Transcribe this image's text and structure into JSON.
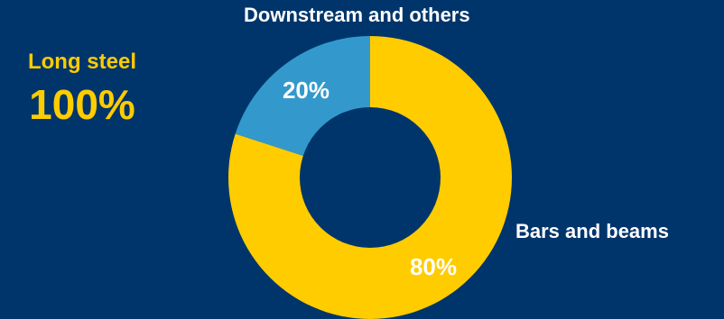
{
  "side_panel": {
    "title": "Long steel",
    "value": "100%"
  },
  "colors": {
    "background": "#00356b",
    "bars_and_beams": "#ffcc00",
    "downstream": "#3399cc",
    "text_white": "#ffffff",
    "text_yellow": "#ffcc00"
  },
  "chart_data": {
    "type": "pie",
    "donut": true,
    "categories": [
      "Bars and beams",
      "Downstream and others"
    ],
    "values": [
      80,
      20
    ],
    "labels": [
      "80%",
      "20%"
    ],
    "colors": [
      "#ffcc00",
      "#3399cc"
    ]
  }
}
